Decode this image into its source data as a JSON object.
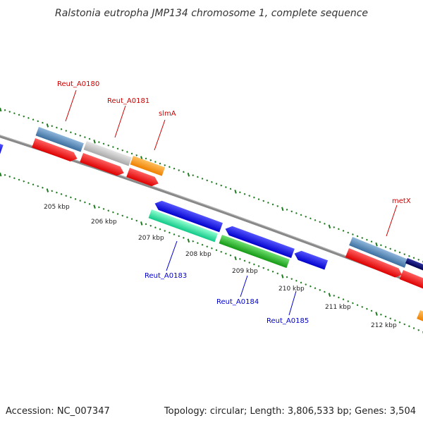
{
  "title": "Ralstonia eutropha JMP134 chromosome 1, complete sequence",
  "footer": {
    "accession": "Accession: NC_007347",
    "summary": "Topology: circular; Length: 3,806,533 bp; Genes: 3,504"
  },
  "kbp_labels": [
    "205 kbp",
    "206 kbp",
    "207 kbp",
    "208 kbp",
    "209 kbp",
    "210 kbp",
    "211 kbp",
    "212 kbp"
  ],
  "gene_labels": {
    "reut_a0180": "Reut_A0180",
    "reut_a0181": "Reut_A0181",
    "slma": "slmA",
    "metx": "metX",
    "reut_a0183": "Reut_A0183",
    "reut_a0184": "Reut_A0184",
    "reut_a0185": "Reut_A0185"
  },
  "colors": {
    "forward_label": "#cc0000",
    "reverse_label": "#0000cc",
    "backbone": "#808080",
    "ticks": "#1e7a1e",
    "steel_blue": "#4a7fb0",
    "light_gray": "#c0c0c0",
    "orange": "#ff9000",
    "red": "#ff0000",
    "blue": "#0000ee",
    "aqua_green": "#20e8a0",
    "green": "#20bb20",
    "dark_navy": "#000070"
  }
}
